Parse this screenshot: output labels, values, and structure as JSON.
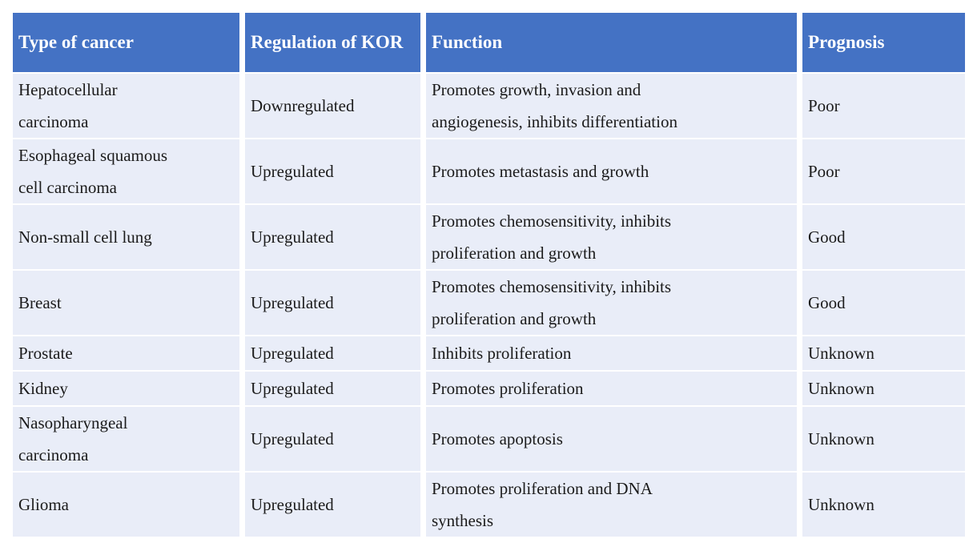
{
  "table": {
    "columns": [
      {
        "label": "Type of cancer"
      },
      {
        "label": "Regulation of KOR"
      },
      {
        "label": "Function"
      },
      {
        "label": "Prognosis"
      }
    ],
    "rows": [
      {
        "type": "Hepatocellular\ncarcinoma",
        "regulation": "Downregulated",
        "function": "Promotes growth, invasion and\nangiogenesis, inhibits differentiation",
        "prognosis": "Poor"
      },
      {
        "type": "Esophageal squamous\ncell carcinoma",
        "regulation": "Upregulated",
        "function": "Promotes metastasis and growth",
        "prognosis": "Poor"
      },
      {
        "type": "Non-small cell lung",
        "regulation": "Upregulated",
        "function": "Promotes chemosensitivity, inhibits\nproliferation and growth",
        "prognosis": "Good"
      },
      {
        "type": "Breast",
        "regulation": "Upregulated",
        "function": "Promotes chemosensitivity, inhibits\nproliferation and growth",
        "prognosis": "Good"
      },
      {
        "type": "Prostate",
        "regulation": "Upregulated",
        "function": "Inhibits proliferation",
        "prognosis": "Unknown"
      },
      {
        "type": "Kidney",
        "regulation": "Upregulated",
        "function": "Promotes proliferation",
        "prognosis": "Unknown"
      },
      {
        "type": "Nasopharyngeal\ncarcinoma",
        "regulation": "Upregulated",
        "function": "Promotes apoptosis",
        "prognosis": "Unknown"
      },
      {
        "type": "Glioma",
        "regulation": "Upregulated",
        "function": "Promotes proliferation and DNA\nsynthesis",
        "prognosis": "Unknown"
      }
    ],
    "colors": {
      "header_bg": "#4472C4",
      "header_text": "#FFFFFF",
      "row_bg": "#E9EDF8",
      "body_text": "#1B1B1B",
      "gutter": "#FFFFFF"
    }
  }
}
